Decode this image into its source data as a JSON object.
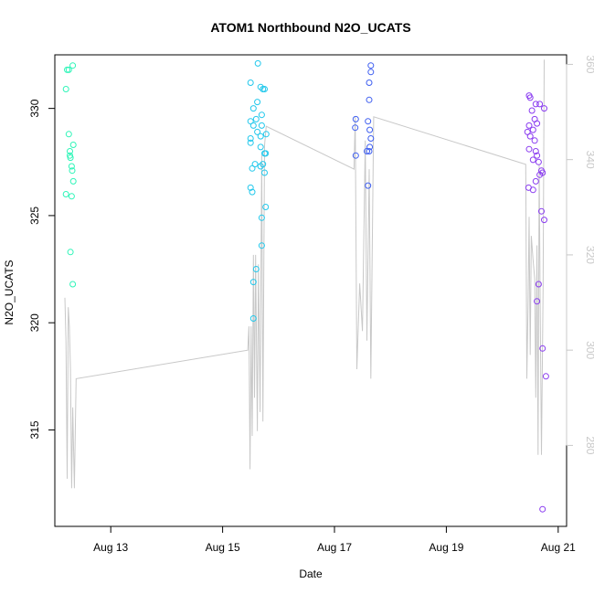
{
  "chart_data": {
    "type": "scatter",
    "title": "ATOM1 Northbound N2O_UCATS",
    "xlabel": "Date",
    "ylabel": "N2O_UCATS",
    "x_unit": "date (August)",
    "x_ticks": [
      {
        "value": 13,
        "label": "Aug 13"
      },
      {
        "value": 15,
        "label": "Aug 15"
      },
      {
        "value": 17,
        "label": "Aug 17"
      },
      {
        "value": 19,
        "label": "Aug 19"
      },
      {
        "value": 21,
        "label": "Aug 21"
      }
    ],
    "xlim": [
      12.0,
      21.15
    ],
    "y_ticks": [
      315,
      320,
      325,
      330
    ],
    "ylim": [
      310.5,
      332.5
    ],
    "y2_ticks": [
      280,
      300,
      320,
      340,
      360
    ],
    "y2lim": [
      263.0,
      362.0
    ],
    "y2_color": "#c8c8c8",
    "grid": false,
    "legend": "none",
    "scatter_series": [
      {
        "color": "#2ef5b8",
        "points": [
          [
            12.22,
            331.8
          ],
          [
            12.25,
            331.8
          ],
          [
            12.32,
            332.0
          ],
          [
            12.2,
            330.9
          ],
          [
            12.25,
            328.8
          ],
          [
            12.27,
            328.0
          ],
          [
            12.27,
            327.8
          ],
          [
            12.28,
            327.7
          ],
          [
            12.3,
            327.3
          ],
          [
            12.31,
            327.1
          ],
          [
            12.33,
            328.3
          ],
          [
            12.33,
            326.6
          ],
          [
            12.2,
            326.0
          ],
          [
            12.3,
            325.9
          ],
          [
            12.28,
            323.3
          ],
          [
            12.32,
            321.8
          ]
        ]
      },
      {
        "color": "#22c8ec",
        "points": [
          [
            15.63,
            332.1
          ],
          [
            15.5,
            331.2
          ],
          [
            15.68,
            331.0
          ],
          [
            15.72,
            330.9
          ],
          [
            15.75,
            330.9
          ],
          [
            15.62,
            330.3
          ],
          [
            15.55,
            330.0
          ],
          [
            15.7,
            329.7
          ],
          [
            15.6,
            329.5
          ],
          [
            15.5,
            329.4
          ],
          [
            15.55,
            329.2
          ],
          [
            15.7,
            329.2
          ],
          [
            15.62,
            328.9
          ],
          [
            15.78,
            328.8
          ],
          [
            15.68,
            328.7
          ],
          [
            15.5,
            328.6
          ],
          [
            15.5,
            328.4
          ],
          [
            15.68,
            328.2
          ],
          [
            15.75,
            327.9
          ],
          [
            15.77,
            327.9
          ],
          [
            15.58,
            327.4
          ],
          [
            15.68,
            327.3
          ],
          [
            15.72,
            327.4
          ],
          [
            15.53,
            327.2
          ],
          [
            15.75,
            327.0
          ],
          [
            15.5,
            326.3
          ],
          [
            15.53,
            326.1
          ],
          [
            15.77,
            325.4
          ],
          [
            15.7,
            324.9
          ],
          [
            15.7,
            323.6
          ],
          [
            15.6,
            322.5
          ],
          [
            15.55,
            321.9
          ],
          [
            15.55,
            320.2
          ]
        ]
      },
      {
        "color": "#3f5ff0",
        "points": [
          [
            17.65,
            332.0
          ],
          [
            17.65,
            331.7
          ],
          [
            17.62,
            331.2
          ],
          [
            17.62,
            330.4
          ],
          [
            17.38,
            329.5
          ],
          [
            17.6,
            329.4
          ],
          [
            17.37,
            329.1
          ],
          [
            17.63,
            329.0
          ],
          [
            17.65,
            328.6
          ],
          [
            17.63,
            328.2
          ],
          [
            17.62,
            328.0
          ],
          [
            17.58,
            328.0
          ],
          [
            17.38,
            327.8
          ],
          [
            17.6,
            326.4
          ]
        ]
      },
      {
        "color": "#8a3cf0",
        "points": [
          [
            20.48,
            330.6
          ],
          [
            20.5,
            330.5
          ],
          [
            20.6,
            330.2
          ],
          [
            20.67,
            330.2
          ],
          [
            20.75,
            330.0
          ],
          [
            20.53,
            329.9
          ],
          [
            20.58,
            329.5
          ],
          [
            20.62,
            329.3
          ],
          [
            20.48,
            329.2
          ],
          [
            20.55,
            329.0
          ],
          [
            20.45,
            328.9
          ],
          [
            20.5,
            328.7
          ],
          [
            20.58,
            328.5
          ],
          [
            20.6,
            328.0
          ],
          [
            20.62,
            327.8
          ],
          [
            20.65,
            327.5
          ],
          [
            20.48,
            328.1
          ],
          [
            20.55,
            327.6
          ],
          [
            20.7,
            327.1
          ],
          [
            20.67,
            326.9
          ],
          [
            20.6,
            326.6
          ],
          [
            20.72,
            327.0
          ],
          [
            20.47,
            326.3
          ],
          [
            20.55,
            326.2
          ],
          [
            20.7,
            325.2
          ],
          [
            20.75,
            324.8
          ],
          [
            20.65,
            321.8
          ],
          [
            20.62,
            321.0
          ],
          [
            20.72,
            318.8
          ],
          [
            20.78,
            317.5
          ],
          [
            20.72,
            311.3
          ]
        ]
      }
    ],
    "line_series": {
      "color": "#c8c8c8",
      "axis": "right",
      "points": [
        [
          12.18,
          311
        ],
        [
          12.2,
          302
        ],
        [
          12.22,
          273
        ],
        [
          12.24,
          309
        ],
        [
          12.26,
          305
        ],
        [
          12.28,
          296
        ],
        [
          12.3,
          271
        ],
        [
          12.32,
          288
        ],
        [
          12.35,
          271
        ],
        [
          12.38,
          294
        ],
        [
          15.45,
          300
        ],
        [
          15.47,
          305
        ],
        [
          15.49,
          275
        ],
        [
          15.51,
          305
        ],
        [
          15.53,
          282
        ],
        [
          15.55,
          320
        ],
        [
          15.57,
          290
        ],
        [
          15.59,
          320
        ],
        [
          15.62,
          283
        ],
        [
          15.64,
          318
        ],
        [
          15.67,
          287
        ],
        [
          15.7,
          341
        ],
        [
          15.72,
          285
        ],
        [
          15.75,
          343
        ],
        [
          15.78,
          347
        ],
        [
          17.35,
          338
        ],
        [
          17.37,
          349
        ],
        [
          17.4,
          296
        ],
        [
          17.45,
          314
        ],
        [
          17.5,
          304
        ],
        [
          17.55,
          344
        ],
        [
          17.58,
          302
        ],
        [
          17.62,
          338
        ],
        [
          17.65,
          294
        ],
        [
          17.7,
          349
        ],
        [
          20.42,
          339
        ],
        [
          20.44,
          294
        ],
        [
          20.46,
          309
        ],
        [
          20.48,
          328
        ],
        [
          20.5,
          299
        ],
        [
          20.52,
          324
        ],
        [
          20.55,
          319
        ],
        [
          20.58,
          315
        ],
        [
          20.6,
          290
        ],
        [
          20.62,
          322
        ],
        [
          20.64,
          278
        ],
        [
          20.66,
          339
        ],
        [
          20.68,
          307
        ],
        [
          20.7,
          278
        ],
        [
          20.73,
          313
        ],
        [
          20.75,
          361
        ]
      ]
    }
  }
}
